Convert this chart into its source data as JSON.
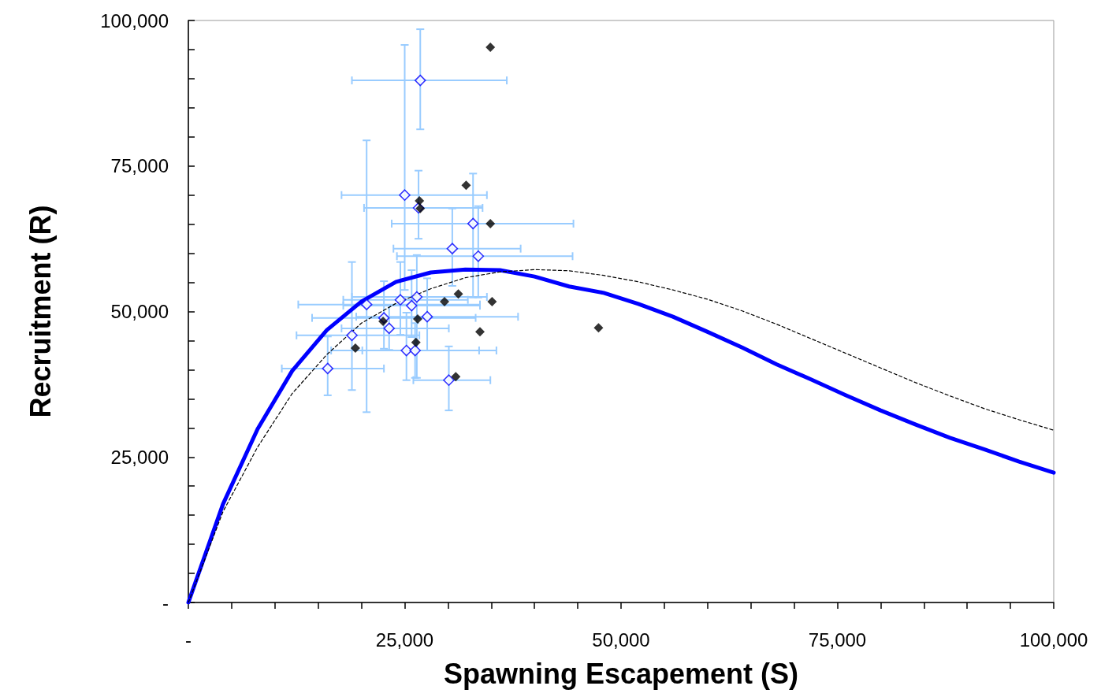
{
  "chart_data": {
    "type": "scatter",
    "xlabel": "Spawning Escapement (S)",
    "ylabel": "Recruitment (R)",
    "xlim": [
      0,
      100000
    ],
    "ylim": [
      0,
      100000
    ],
    "xticks": [
      {
        "value": 0,
        "label": "-"
      },
      {
        "value": 5000,
        "label": null
      },
      {
        "value": 10000,
        "label": null
      },
      {
        "value": 15000,
        "label": null
      },
      {
        "value": 20000,
        "label": null
      },
      {
        "value": 25000,
        "label": "25,000"
      },
      {
        "value": 30000,
        "label": null
      },
      {
        "value": 35000,
        "label": null
      },
      {
        "value": 40000,
        "label": null
      },
      {
        "value": 45000,
        "label": null
      },
      {
        "value": 50000,
        "label": "50,000"
      },
      {
        "value": 55000,
        "label": null
      },
      {
        "value": 60000,
        "label": null
      },
      {
        "value": 65000,
        "label": null
      },
      {
        "value": 70000,
        "label": null
      },
      {
        "value": 75000,
        "label": "75,000"
      },
      {
        "value": 80000,
        "label": null
      },
      {
        "value": 85000,
        "label": null
      },
      {
        "value": 90000,
        "label": null
      },
      {
        "value": 95000,
        "label": null
      },
      {
        "value": 100000,
        "label": "100,000"
      }
    ],
    "yticks": [
      {
        "value": 0,
        "label": "-"
      },
      {
        "value": 5000,
        "label": null
      },
      {
        "value": 10000,
        "label": null
      },
      {
        "value": 15000,
        "label": null
      },
      {
        "value": 20000,
        "label": null
      },
      {
        "value": 25000,
        "label": "25,000"
      },
      {
        "value": 30000,
        "label": null
      },
      {
        "value": 35000,
        "label": null
      },
      {
        "value": 40000,
        "label": null
      },
      {
        "value": 45000,
        "label": null
      },
      {
        "value": 50000,
        "label": "50,000"
      },
      {
        "value": 55000,
        "label": null
      },
      {
        "value": 60000,
        "label": null
      },
      {
        "value": 65000,
        "label": null
      },
      {
        "value": 70000,
        "label": null
      },
      {
        "value": 75000,
        "label": "75,000"
      },
      {
        "value": 80000,
        "label": null
      },
      {
        "value": 85000,
        "label": null
      },
      {
        "value": 90000,
        "label": null
      },
      {
        "value": 95000,
        "label": null
      },
      {
        "value": 100000,
        "label": "100,000"
      }
    ],
    "grid": false,
    "series": [
      {
        "type": "line",
        "color": "#0000ff",
        "marker": "none",
        "line_style": "solid",
        "x": [
          0,
          4000,
          8000,
          12000,
          16000,
          20000,
          24000,
          28000,
          32000,
          36000,
          40000,
          44000,
          48000,
          52000,
          56000,
          60000,
          64000,
          68000,
          72000,
          76000,
          80000,
          84000,
          88000,
          92000,
          96000,
          100000
        ],
        "values": [
          0,
          16900,
          29800,
          39800,
          46800,
          51700,
          55100,
          56700,
          57200,
          57100,
          56000,
          54300,
          53200,
          51300,
          49100,
          46500,
          43800,
          40900,
          38300,
          35600,
          33000,
          30600,
          28300,
          26300,
          24200,
          22300
        ]
      },
      {
        "type": "line",
        "color": "#000000",
        "marker": "none",
        "line_style": "dashed",
        "x": [
          0,
          4000,
          8000,
          12000,
          16000,
          20000,
          24000,
          28000,
          32000,
          36000,
          40000,
          44000,
          48000,
          52000,
          56000,
          60000,
          64000,
          68000,
          72000,
          76000,
          80000,
          84000,
          88000,
          92000,
          96000,
          100000
        ],
        "values": [
          0,
          15600,
          26700,
          35900,
          42600,
          48000,
          51400,
          53900,
          55800,
          56800,
          57200,
          57000,
          56200,
          55100,
          53700,
          52100,
          50100,
          47800,
          45300,
          42800,
          40300,
          37800,
          35500,
          33300,
          31400,
          29600
        ]
      },
      {
        "color": "#000000",
        "marker": "diamond",
        "x": [
          34900,
          32100,
          26700,
          26800,
          34900,
          31200,
          29600,
          35100,
          47400,
          22500,
          26500,
          33700,
          19300,
          26300,
          30900
        ],
        "values": [
          95400,
          71700,
          69000,
          67700,
          65100,
          53000,
          51700,
          51700,
          47200,
          48300,
          48700,
          46500,
          43700,
          44700,
          38800
        ]
      },
      {
        "color": "#0000ff",
        "marker": "diamond",
        "x": [
          26800,
          25000,
          32900,
          30500,
          33500,
          26600,
          20600,
          24500,
          26400,
          25800,
          27600,
          22600,
          23200,
          18900,
          25200,
          26200,
          16100,
          30100
        ],
        "values": [
          89700,
          70000,
          65100,
          60800,
          59500,
          67800,
          51200,
          52000,
          52500,
          51000,
          49100,
          48900,
          47100,
          45900,
          43300,
          43300,
          40200,
          38200
        ],
        "errors": [
          [
            81300,
            98500
          ],
          [
            53700,
            95800
          ],
          [
            52400,
            73700
          ],
          [
            54400,
            67700
          ],
          [
            52400,
            68100
          ],
          [
            62500,
            74200
          ],
          [
            32700,
            79400
          ],
          [
            46000,
            58500
          ],
          [
            38600,
            59700
          ],
          [
            45600,
            57100
          ],
          [
            43300,
            55700
          ],
          [
            43600,
            55200
          ],
          [
            43400,
            51000
          ],
          [
            36500,
            58500
          ],
          [
            38200,
            49800
          ],
          [
            38600,
            48000
          ],
          [
            35600,
            45700
          ],
          [
            33000,
            44000
          ]
        ],
        "xerrors": [
          [
            18900,
            36800
          ],
          [
            17700,
            34500
          ],
          [
            23500,
            44500
          ],
          [
            23700,
            38400
          ],
          [
            24100,
            44400
          ],
          [
            20300,
            34000
          ],
          [
            12700,
            33700
          ],
          [
            17900,
            32300
          ],
          [
            18900,
            34500
          ],
          [
            17900,
            33700
          ],
          [
            19400,
            38100
          ],
          [
            14300,
            33200
          ],
          [
            17700,
            30100
          ],
          [
            12500,
            26700
          ],
          [
            16500,
            35600
          ],
          [
            20100,
            33600
          ],
          [
            10800,
            22600
          ],
          [
            26000,
            34900
          ]
        ]
      }
    ]
  }
}
